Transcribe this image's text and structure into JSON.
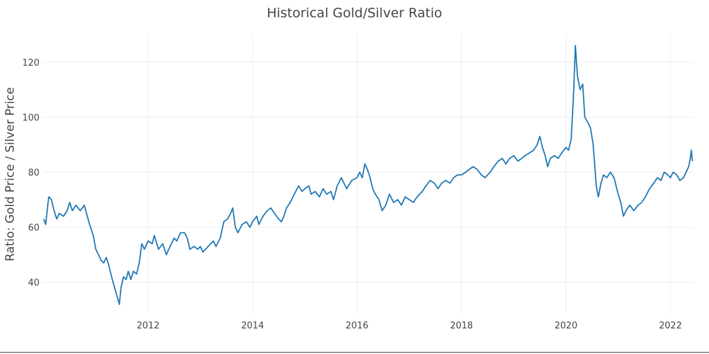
{
  "chart_data": {
    "type": "line",
    "title": "Historical Gold/Silver Ratio",
    "xlabel": "",
    "ylabel": "Ratio: Gold Price / Silver Price",
    "xlim": [
      2010.0,
      2022.42
    ],
    "ylim": [
      29,
      130
    ],
    "x_ticks": [
      2012,
      2014,
      2016,
      2018,
      2020,
      2022
    ],
    "x_tick_labels": [
      "2012",
      "2014",
      "2016",
      "2018",
      "2020",
      "2022"
    ],
    "y_ticks": [
      40,
      60,
      80,
      100,
      120
    ],
    "y_tick_labels": [
      "40",
      "60",
      "80",
      "100",
      "120"
    ],
    "grid": true,
    "series": [
      {
        "name": "Gold/Silver Ratio",
        "color": "#1f77b4",
        "points": [
          [
            2010.0,
            63
          ],
          [
            2010.04,
            61
          ],
          [
            2010.08,
            68
          ],
          [
            2010.1,
            71
          ],
          [
            2010.15,
            70
          ],
          [
            2010.2,
            66
          ],
          [
            2010.25,
            63
          ],
          [
            2010.3,
            65
          ],
          [
            2010.38,
            64
          ],
          [
            2010.45,
            66
          ],
          [
            2010.5,
            69
          ],
          [
            2010.55,
            66
          ],
          [
            2010.62,
            68
          ],
          [
            2010.7,
            66
          ],
          [
            2010.78,
            68
          ],
          [
            2010.82,
            65
          ],
          [
            2010.88,
            61
          ],
          [
            2010.95,
            57
          ],
          [
            2011.0,
            52
          ],
          [
            2011.05,
            50
          ],
          [
            2011.1,
            48
          ],
          [
            2011.15,
            47
          ],
          [
            2011.2,
            49
          ],
          [
            2011.25,
            46
          ],
          [
            2011.3,
            42
          ],
          [
            2011.36,
            38
          ],
          [
            2011.42,
            34
          ],
          [
            2011.45,
            32
          ],
          [
            2011.48,
            38
          ],
          [
            2011.53,
            42
          ],
          [
            2011.58,
            41
          ],
          [
            2011.62,
            44
          ],
          [
            2011.67,
            41
          ],
          [
            2011.72,
            44
          ],
          [
            2011.78,
            43
          ],
          [
            2011.83,
            47
          ],
          [
            2011.88,
            54
          ],
          [
            2011.93,
            52
          ],
          [
            2012.0,
            55
          ],
          [
            2012.08,
            54
          ],
          [
            2012.12,
            57
          ],
          [
            2012.2,
            52
          ],
          [
            2012.28,
            54
          ],
          [
            2012.35,
            50
          ],
          [
            2012.42,
            53
          ],
          [
            2012.5,
            56
          ],
          [
            2012.55,
            55
          ],
          [
            2012.62,
            58
          ],
          [
            2012.7,
            58
          ],
          [
            2012.75,
            56
          ],
          [
            2012.8,
            52
          ],
          [
            2012.88,
            53
          ],
          [
            2012.95,
            52
          ],
          [
            2013.0,
            53
          ],
          [
            2013.05,
            51
          ],
          [
            2013.1,
            52
          ],
          [
            2013.2,
            54
          ],
          [
            2013.25,
            55
          ],
          [
            2013.3,
            53
          ],
          [
            2013.38,
            56
          ],
          [
            2013.45,
            62
          ],
          [
            2013.52,
            63
          ],
          [
            2013.58,
            65
          ],
          [
            2013.62,
            67
          ],
          [
            2013.67,
            60
          ],
          [
            2013.72,
            58
          ],
          [
            2013.8,
            61
          ],
          [
            2013.88,
            62
          ],
          [
            2013.95,
            60
          ],
          [
            2014.0,
            62
          ],
          [
            2014.08,
            64
          ],
          [
            2014.12,
            61
          ],
          [
            2014.2,
            64
          ],
          [
            2014.28,
            66
          ],
          [
            2014.35,
            67
          ],
          [
            2014.42,
            65
          ],
          [
            2014.5,
            63
          ],
          [
            2014.55,
            62
          ],
          [
            2014.6,
            64
          ],
          [
            2014.65,
            67
          ],
          [
            2014.72,
            69
          ],
          [
            2014.8,
            72
          ],
          [
            2014.88,
            75
          ],
          [
            2014.95,
            73
          ],
          [
            2015.0,
            74
          ],
          [
            2015.08,
            75
          ],
          [
            2015.12,
            72
          ],
          [
            2015.2,
            73
          ],
          [
            2015.28,
            71
          ],
          [
            2015.35,
            74
          ],
          [
            2015.42,
            72
          ],
          [
            2015.5,
            73
          ],
          [
            2015.55,
            70
          ],
          [
            2015.62,
            75
          ],
          [
            2015.7,
            78
          ],
          [
            2015.75,
            76
          ],
          [
            2015.8,
            74
          ],
          [
            2015.9,
            77
          ],
          [
            2016.0,
            78
          ],
          [
            2016.05,
            80
          ],
          [
            2016.1,
            78
          ],
          [
            2016.15,
            83
          ],
          [
            2016.2,
            81
          ],
          [
            2016.25,
            78
          ],
          [
            2016.3,
            74
          ],
          [
            2016.35,
            72
          ],
          [
            2016.42,
            70
          ],
          [
            2016.48,
            66
          ],
          [
            2016.55,
            68
          ],
          [
            2016.62,
            72
          ],
          [
            2016.7,
            69
          ],
          [
            2016.78,
            70
          ],
          [
            2016.85,
            68
          ],
          [
            2016.92,
            71
          ],
          [
            2017.0,
            70
          ],
          [
            2017.08,
            69
          ],
          [
            2017.15,
            71
          ],
          [
            2017.25,
            73
          ],
          [
            2017.32,
            75
          ],
          [
            2017.4,
            77
          ],
          [
            2017.48,
            76
          ],
          [
            2017.55,
            74
          ],
          [
            2017.62,
            76
          ],
          [
            2017.7,
            77
          ],
          [
            2017.78,
            76
          ],
          [
            2017.85,
            78
          ],
          [
            2017.92,
            79
          ],
          [
            2018.0,
            79
          ],
          [
            2018.08,
            80
          ],
          [
            2018.15,
            81
          ],
          [
            2018.22,
            82
          ],
          [
            2018.3,
            81
          ],
          [
            2018.38,
            79
          ],
          [
            2018.45,
            78
          ],
          [
            2018.55,
            80
          ],
          [
            2018.62,
            82
          ],
          [
            2018.7,
            84
          ],
          [
            2018.78,
            85
          ],
          [
            2018.85,
            83
          ],
          [
            2018.92,
            85
          ],
          [
            2019.0,
            86
          ],
          [
            2019.08,
            84
          ],
          [
            2019.15,
            85
          ],
          [
            2019.22,
            86
          ],
          [
            2019.3,
            87
          ],
          [
            2019.38,
            88
          ],
          [
            2019.45,
            90
          ],
          [
            2019.5,
            93
          ],
          [
            2019.55,
            89
          ],
          [
            2019.6,
            86
          ],
          [
            2019.65,
            82
          ],
          [
            2019.7,
            85
          ],
          [
            2019.78,
            86
          ],
          [
            2019.85,
            85
          ],
          [
            2019.92,
            87
          ],
          [
            2020.0,
            89
          ],
          [
            2020.05,
            88
          ],
          [
            2020.1,
            92
          ],
          [
            2020.15,
            110
          ],
          [
            2020.18,
            126
          ],
          [
            2020.22,
            115
          ],
          [
            2020.27,
            110
          ],
          [
            2020.32,
            112
          ],
          [
            2020.36,
            100
          ],
          [
            2020.42,
            98
          ],
          [
            2020.47,
            96
          ],
          [
            2020.52,
            90
          ],
          [
            2020.58,
            75
          ],
          [
            2020.62,
            71
          ],
          [
            2020.67,
            76
          ],
          [
            2020.72,
            79
          ],
          [
            2020.78,
            78
          ],
          [
            2020.85,
            80
          ],
          [
            2020.92,
            78
          ],
          [
            2021.0,
            72
          ],
          [
            2021.05,
            69
          ],
          [
            2021.1,
            64
          ],
          [
            2021.15,
            66
          ],
          [
            2021.22,
            68
          ],
          [
            2021.3,
            66
          ],
          [
            2021.38,
            68
          ],
          [
            2021.45,
            69
          ],
          [
            2021.52,
            71
          ],
          [
            2021.6,
            74
          ],
          [
            2021.68,
            76
          ],
          [
            2021.75,
            78
          ],
          [
            2021.82,
            77
          ],
          [
            2021.88,
            80
          ],
          [
            2021.95,
            79
          ],
          [
            2022.0,
            78
          ],
          [
            2022.05,
            80
          ],
          [
            2022.12,
            79
          ],
          [
            2022.18,
            77
          ],
          [
            2022.25,
            78
          ],
          [
            2022.3,
            80
          ],
          [
            2022.35,
            82
          ],
          [
            2022.38,
            85
          ],
          [
            2022.4,
            88
          ],
          [
            2022.42,
            84
          ]
        ]
      }
    ]
  }
}
